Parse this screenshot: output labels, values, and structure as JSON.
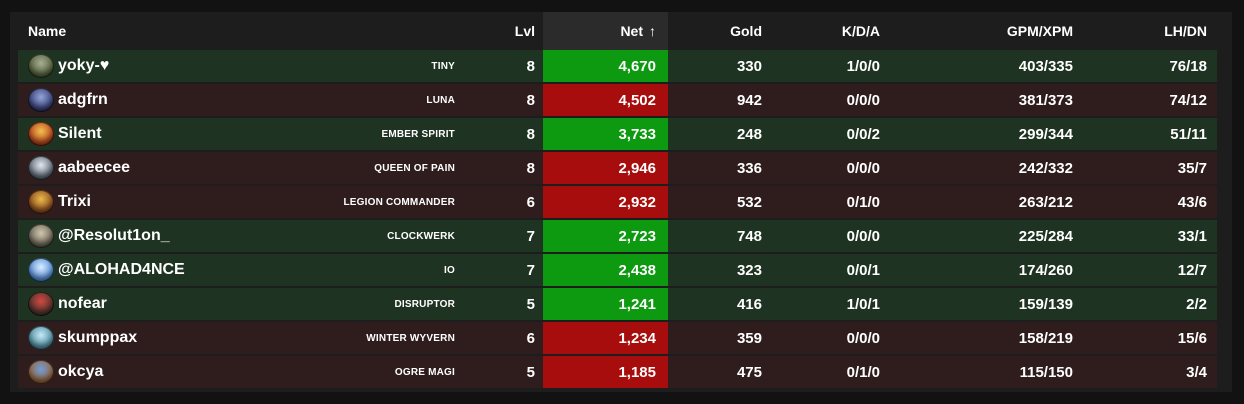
{
  "colors": {
    "background": "#121212",
    "panel": "#1d1d1d",
    "sorted_header": "#2b2b2b",
    "radiant_row": "#1e3321",
    "dire_row": "#2f1d1d",
    "net_up": "#0e9a10",
    "net_down": "#a80d0d",
    "text": "#ffffff"
  },
  "columns": {
    "name": "Name",
    "lvl": "Lvl",
    "net": "Net",
    "sort_indicator": "↑",
    "gold": "Gold",
    "kda": "K/D/A",
    "gpm_xpm": "GPM/XPM",
    "lh_dn": "LH/DN"
  },
  "rows": [
    {
      "player": "yoky-♥",
      "hero": "TINY",
      "level": "8",
      "net": "4,670",
      "net_trend": "up",
      "team": "radiant",
      "gold": "330",
      "kda": "1/0/0",
      "gpm_xpm": "403/335",
      "lh_dn": "76/18",
      "icon": {
        "name": "hero-icon-tiny",
        "c1": "#a8ad93",
        "c2": "#46572f"
      }
    },
    {
      "player": "adgfrn",
      "hero": "LUNA",
      "level": "8",
      "net": "4,502",
      "net_trend": "down",
      "team": "dire",
      "gold": "942",
      "kda": "0/0/0",
      "gpm_xpm": "381/373",
      "lh_dn": "74/12",
      "icon": {
        "name": "hero-icon-luna",
        "c1": "#93a3d8",
        "c2": "#2a3168"
      }
    },
    {
      "player": "Silent",
      "hero": "EMBER SPIRIT",
      "level": "8",
      "net": "3,733",
      "net_trend": "up",
      "team": "radiant",
      "gold": "248",
      "kda": "0/0/2",
      "gpm_xpm": "299/344",
      "lh_dn": "51/11",
      "icon": {
        "name": "hero-icon-ember-spirit",
        "c1": "#f2c14e",
        "c2": "#b03016"
      }
    },
    {
      "player": "aabeecee",
      "hero": "QUEEN OF PAIN",
      "level": "8",
      "net": "2,946",
      "net_trend": "down",
      "team": "dire",
      "gold": "336",
      "kda": "0/0/0",
      "gpm_xpm": "242/332",
      "lh_dn": "35/7",
      "icon": {
        "name": "hero-icon-queen-of-pain",
        "c1": "#dfe6ee",
        "c2": "#4d5663"
      }
    },
    {
      "player": "Trixi",
      "hero": "LEGION COMMANDER",
      "level": "6",
      "net": "2,932",
      "net_trend": "down",
      "team": "dire",
      "gold": "532",
      "kda": "0/1/0",
      "gpm_xpm": "263/212",
      "lh_dn": "43/6",
      "icon": {
        "name": "hero-icon-legion-commander",
        "c1": "#eab949",
        "c2": "#7c3a1a"
      }
    },
    {
      "player": "@Resolut1on_",
      "hero": "CLOCKWERK",
      "level": "7",
      "net": "2,723",
      "net_trend": "up",
      "team": "radiant",
      "gold": "748",
      "kda": "0/0/0",
      "gpm_xpm": "225/284",
      "lh_dn": "33/1",
      "icon": {
        "name": "hero-icon-clockwerk",
        "c1": "#cfc7ad",
        "c2": "#5c564b"
      }
    },
    {
      "player": "@ALOHAD4NCE",
      "hero": "IO",
      "level": "7",
      "net": "2,438",
      "net_trend": "up",
      "team": "radiant",
      "gold": "323",
      "kda": "0/0/1",
      "gpm_xpm": "174/260",
      "lh_dn": "12/7",
      "icon": {
        "name": "hero-icon-io",
        "c1": "#d9ecff",
        "c2": "#3f7fd0"
      }
    },
    {
      "player": "nofear",
      "hero": "DISRUPTOR",
      "level": "5",
      "net": "1,241",
      "net_trend": "up",
      "team": "radiant",
      "gold": "416",
      "kda": "1/0/1",
      "gpm_xpm": "159/139",
      "lh_dn": "2/2",
      "icon": {
        "name": "hero-icon-disruptor",
        "c1": "#d24743",
        "c2": "#3c332a"
      }
    },
    {
      "player": "skumppax",
      "hero": "WINTER WYVERN",
      "level": "6",
      "net": "1,234",
      "net_trend": "down",
      "team": "dire",
      "gold": "359",
      "kda": "0/0/0",
      "gpm_xpm": "158/219",
      "lh_dn": "15/6",
      "icon": {
        "name": "hero-icon-winter-wyvern",
        "c1": "#c3e9f7",
        "c2": "#3f7f93"
      }
    },
    {
      "player": "okcya",
      "hero": "OGRE MAGI",
      "level": "5",
      "net": "1,185",
      "net_trend": "down",
      "team": "dire",
      "gold": "475",
      "kda": "0/1/0",
      "gpm_xpm": "115/150",
      "lh_dn": "3/4",
      "icon": {
        "name": "hero-icon-ogre-magi",
        "c1": "#6f9ddc",
        "c2": "#a05f22"
      }
    }
  ]
}
